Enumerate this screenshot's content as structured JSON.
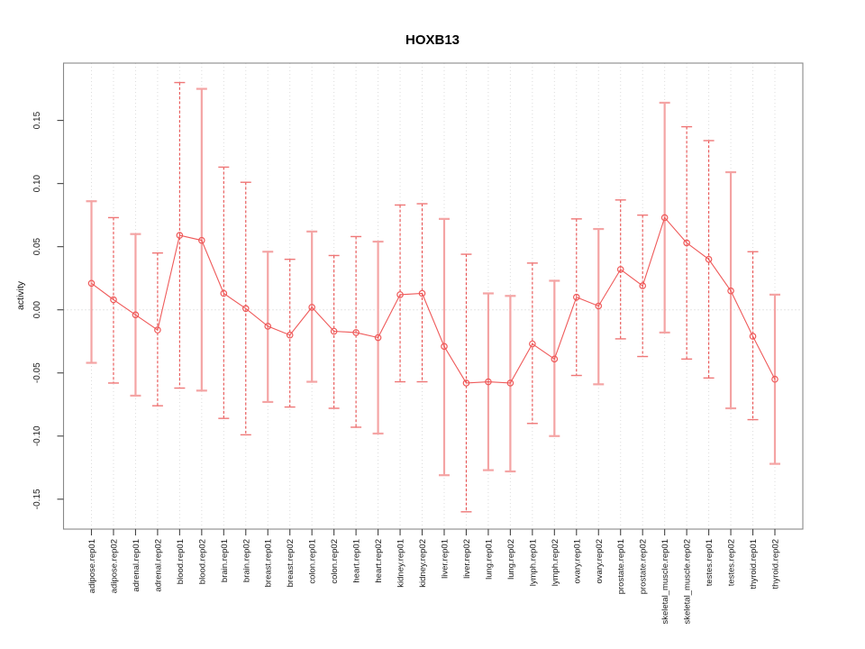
{
  "chart_data": {
    "type": "line",
    "subtype": "error-bars",
    "title": "HOXB13",
    "xlabel": "",
    "ylabel": "activity",
    "ylim": [
      -0.1737,
      0.1954
    ],
    "yticks": [
      -0.15,
      -0.1,
      -0.05,
      0.0,
      0.05,
      0.1,
      0.15
    ],
    "grid": "vertical-dotted",
    "zero_line": true,
    "legend": "none",
    "colors": {
      "series": "#ef5a5a",
      "bar_solid": "#f4a4a4",
      "bar_dashed": "#e85050",
      "cap_dashed": "#ef7777",
      "gridline": "#dcdcdc",
      "zero_line": "#cccccc",
      "frame": "#888888",
      "tick": "#444444",
      "tick_label": "#1a1a1a"
    },
    "points": [
      {
        "label": "adipose.rep01",
        "value": 0.021,
        "lo": -0.042,
        "hi": 0.086,
        "bar": "solid"
      },
      {
        "label": "adipose.rep02",
        "value": 0.008,
        "lo": -0.058,
        "hi": 0.073,
        "bar": "dashed"
      },
      {
        "label": "adrenal.rep01",
        "value": -0.004,
        "lo": -0.068,
        "hi": 0.06,
        "bar": "solid"
      },
      {
        "label": "adrenal.rep02",
        "value": -0.016,
        "lo": -0.076,
        "hi": 0.045,
        "bar": "dashed"
      },
      {
        "label": "blood.rep01",
        "value": 0.059,
        "lo": -0.062,
        "hi": 0.18,
        "bar": "dashed"
      },
      {
        "label": "blood.rep02",
        "value": 0.055,
        "lo": -0.064,
        "hi": 0.175,
        "bar": "solid"
      },
      {
        "label": "brain.rep01",
        "value": 0.013,
        "lo": -0.086,
        "hi": 0.113,
        "bar": "dashed"
      },
      {
        "label": "brain.rep02",
        "value": 0.001,
        "lo": -0.099,
        "hi": 0.101,
        "bar": "dashed"
      },
      {
        "label": "breast.rep01",
        "value": -0.013,
        "lo": -0.073,
        "hi": 0.046,
        "bar": "solid"
      },
      {
        "label": "breast.rep02",
        "value": -0.02,
        "lo": -0.077,
        "hi": 0.04,
        "bar": "dashed"
      },
      {
        "label": "colon.rep01",
        "value": 0.002,
        "lo": -0.057,
        "hi": 0.062,
        "bar": "solid"
      },
      {
        "label": "colon.rep02",
        "value": -0.017,
        "lo": -0.078,
        "hi": 0.043,
        "bar": "dashed"
      },
      {
        "label": "heart.rep01",
        "value": -0.018,
        "lo": -0.093,
        "hi": 0.058,
        "bar": "dashed"
      },
      {
        "label": "heart.rep02",
        "value": -0.022,
        "lo": -0.098,
        "hi": 0.054,
        "bar": "solid"
      },
      {
        "label": "kidney.rep01",
        "value": 0.012,
        "lo": -0.057,
        "hi": 0.083,
        "bar": "dashed"
      },
      {
        "label": "kidney.rep02",
        "value": 0.013,
        "lo": -0.057,
        "hi": 0.084,
        "bar": "dashed"
      },
      {
        "label": "liver.rep01",
        "value": -0.029,
        "lo": -0.131,
        "hi": 0.072,
        "bar": "solid"
      },
      {
        "label": "liver.rep02",
        "value": -0.058,
        "lo": -0.16,
        "hi": 0.044,
        "bar": "dashed"
      },
      {
        "label": "lung.rep01",
        "value": -0.057,
        "lo": -0.127,
        "hi": 0.013,
        "bar": "solid"
      },
      {
        "label": "lung.rep02",
        "value": -0.058,
        "lo": -0.128,
        "hi": 0.011,
        "bar": "solid"
      },
      {
        "label": "lymph.rep01",
        "value": -0.027,
        "lo": -0.09,
        "hi": 0.037,
        "bar": "dashed"
      },
      {
        "label": "lymph.rep02",
        "value": -0.039,
        "lo": -0.1,
        "hi": 0.023,
        "bar": "solid"
      },
      {
        "label": "ovary.rep01",
        "value": 0.01,
        "lo": -0.052,
        "hi": 0.072,
        "bar": "dashed"
      },
      {
        "label": "ovary.rep02",
        "value": 0.003,
        "lo": -0.059,
        "hi": 0.064,
        "bar": "solid"
      },
      {
        "label": "prostate.rep01",
        "value": 0.032,
        "lo": -0.023,
        "hi": 0.087,
        "bar": "dashed"
      },
      {
        "label": "prostate.rep02",
        "value": 0.019,
        "lo": -0.037,
        "hi": 0.075,
        "bar": "dashed"
      },
      {
        "label": "skeletal_muscle.rep01",
        "value": 0.073,
        "lo": -0.018,
        "hi": 0.164,
        "bar": "solid"
      },
      {
        "label": "skeletal_muscle.rep02",
        "value": 0.053,
        "lo": -0.039,
        "hi": 0.145,
        "bar": "dashed"
      },
      {
        "label": "testes.rep01",
        "value": 0.04,
        "lo": -0.054,
        "hi": 0.134,
        "bar": "dashed"
      },
      {
        "label": "testes.rep02",
        "value": 0.015,
        "lo": -0.078,
        "hi": 0.109,
        "bar": "solid"
      },
      {
        "label": "thyroid.rep01",
        "value": -0.021,
        "lo": -0.087,
        "hi": 0.046,
        "bar": "dashed"
      },
      {
        "label": "thyroid.rep02",
        "value": -0.055,
        "lo": -0.122,
        "hi": 0.012,
        "bar": "solid"
      }
    ]
  }
}
